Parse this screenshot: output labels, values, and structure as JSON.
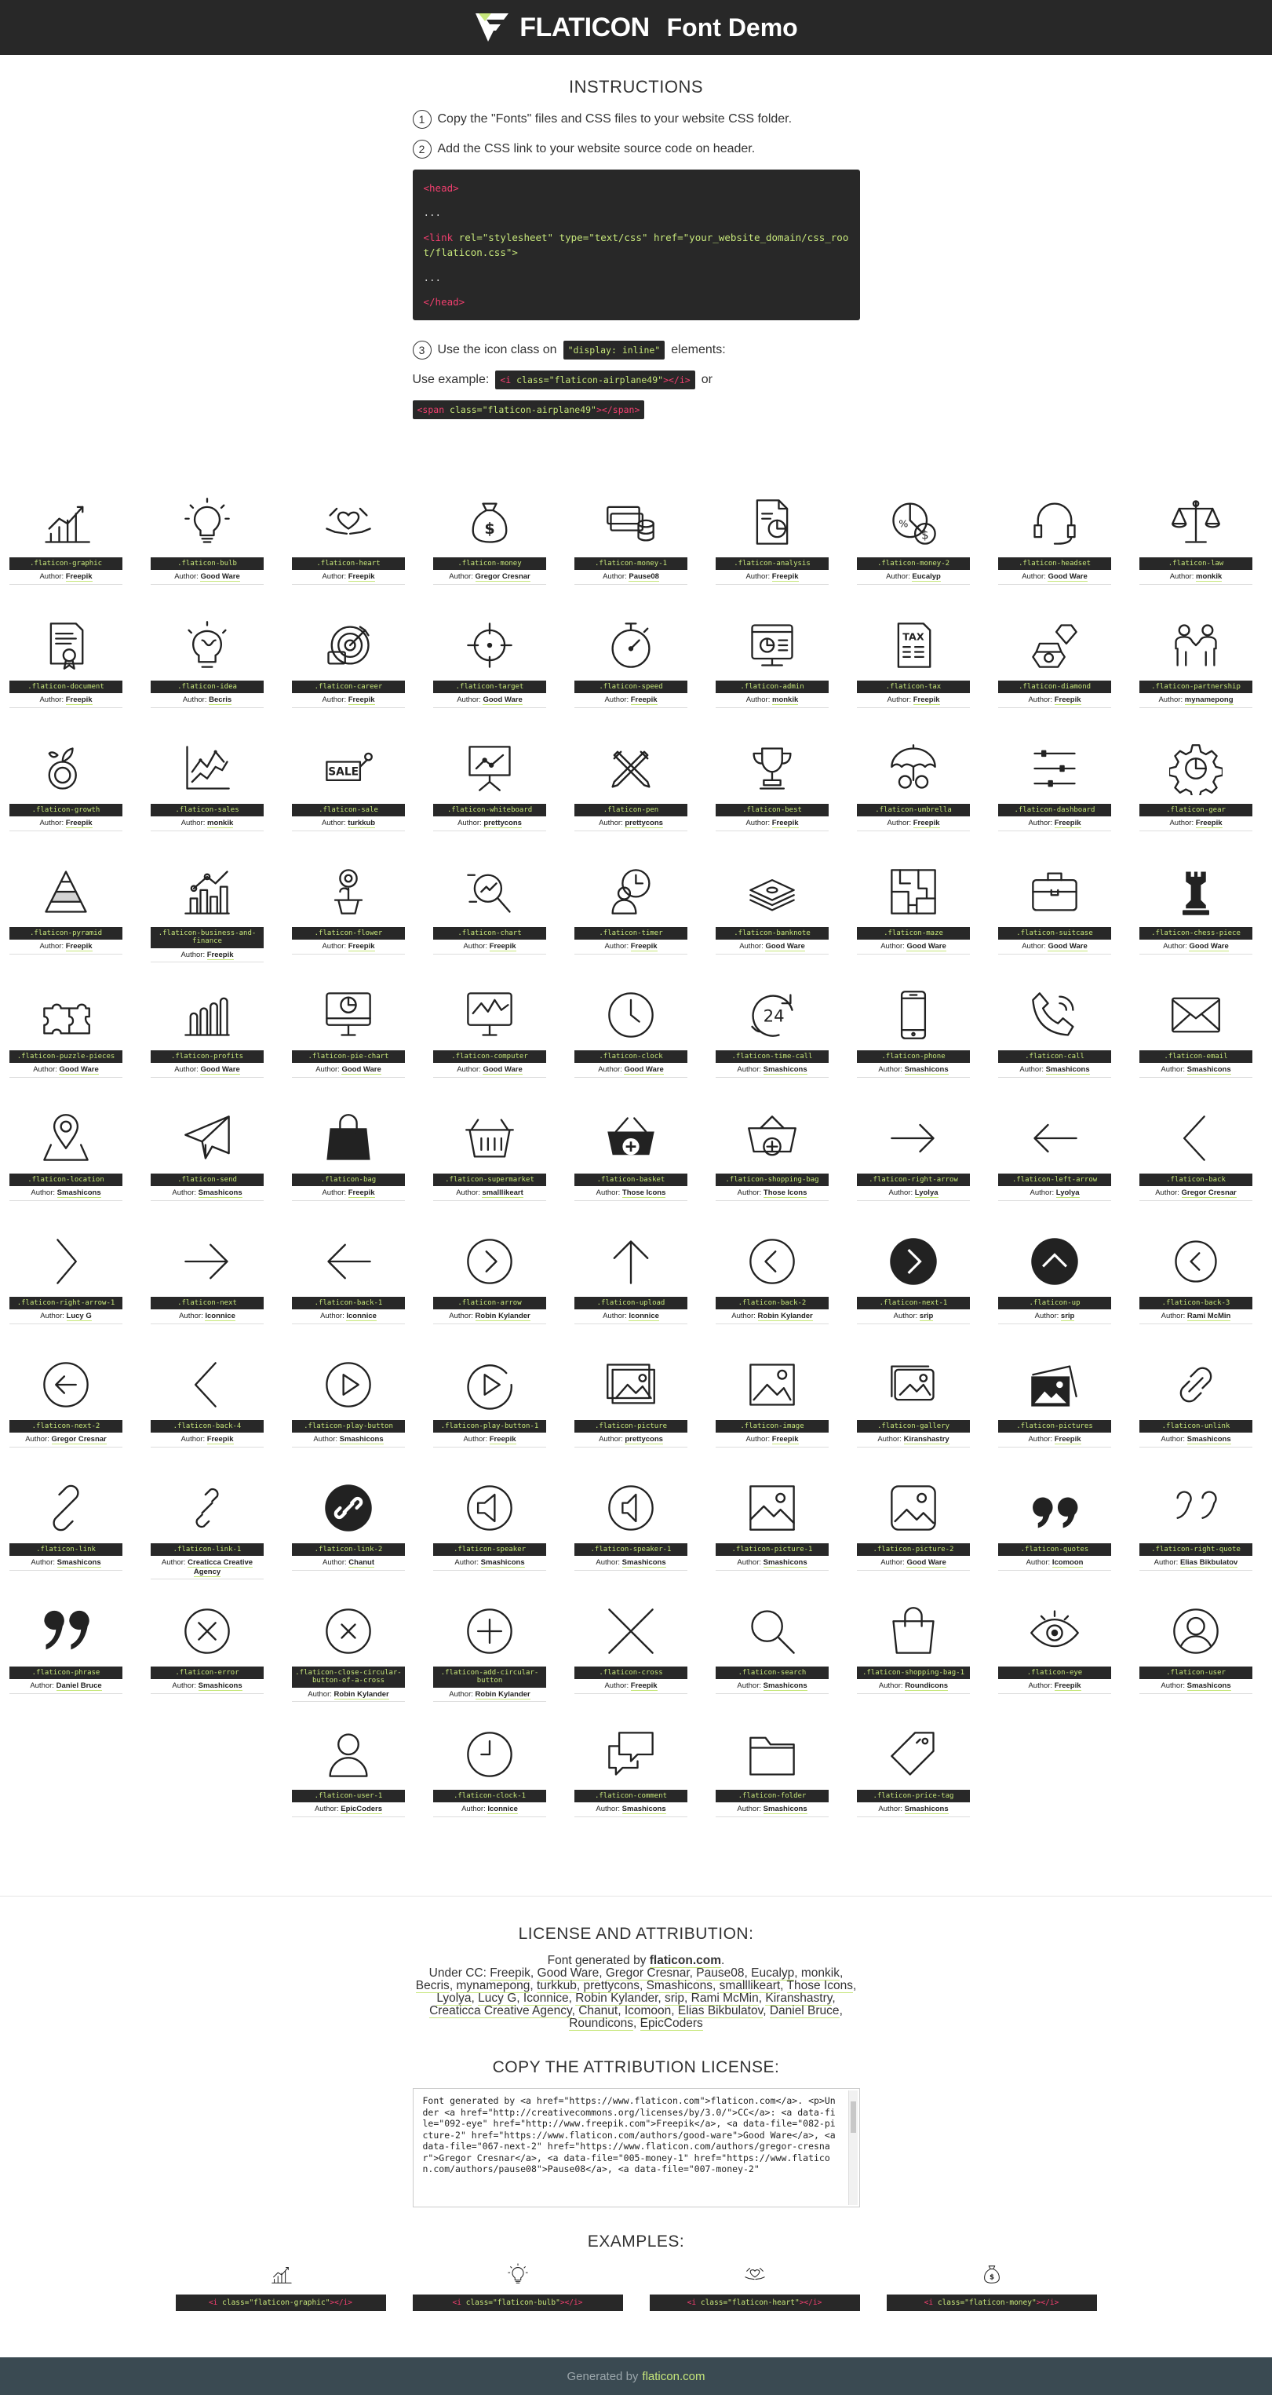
{
  "header": {
    "brand": "FLATICON",
    "subtitle": "Font Demo"
  },
  "instructions": {
    "title": "INSTRUCTIONS",
    "step1": "Copy the \"Fonts\" files and CSS files to your website CSS folder.",
    "step2": "Add the CSS link to your website source code on header.",
    "step3_before": "Use the icon class on",
    "step3_code": "\"display: inline\"",
    "step3_after": "elements:",
    "usage_label": "Use example:",
    "usage_or": "or",
    "code_head_open": "<head>",
    "code_dots": "...",
    "code_link_tag": "<link",
    "code_link_rest": " rel=\"stylesheet\" type=\"text/css\" href=\"your_website_domain/css_root/flaticon.css\">",
    "code_head_close": "</head>",
    "example_i_open": "<i",
    "example_i_attr": " class=\"flaticon-airplane49\"",
    "example_i_close": "></i>",
    "example_span_open": "<span",
    "example_span_attr": " class=\"flaticon-airplane49\"",
    "example_span_close": "></span>"
  },
  "icons": [
    {
      "cls": ".flaticon-graphic",
      "author": "Freepik",
      "icon": "graphic-icon"
    },
    {
      "cls": ".flaticon-bulb",
      "author": "Good Ware",
      "icon": "bulb-icon"
    },
    {
      "cls": ".flaticon-heart",
      "author": "Freepik",
      "icon": "heart-icon"
    },
    {
      "cls": ".flaticon-money",
      "author": "Gregor Cresnar",
      "icon": "money-icon"
    },
    {
      "cls": ".flaticon-money-1",
      "author": "Pause08",
      "icon": "money-1-icon"
    },
    {
      "cls": ".flaticon-analysis",
      "author": "Freepik",
      "icon": "analysis-icon"
    },
    {
      "cls": ".flaticon-money-2",
      "author": "Eucalyp",
      "icon": "money-2-icon"
    },
    {
      "cls": ".flaticon-headset",
      "author": "Good Ware",
      "icon": "headset-icon"
    },
    {
      "cls": ".flaticon-law",
      "author": "monkik",
      "icon": "law-icon"
    },
    {
      "cls": ".flaticon-document",
      "author": "Freepik",
      "icon": "document-icon"
    },
    {
      "cls": ".flaticon-idea",
      "author": "Becris",
      "icon": "idea-icon"
    },
    {
      "cls": ".flaticon-career",
      "author": "Freepik",
      "icon": "career-icon"
    },
    {
      "cls": ".flaticon-target",
      "author": "Good Ware",
      "icon": "target-icon"
    },
    {
      "cls": ".flaticon-speed",
      "author": "Freepik",
      "icon": "speed-icon"
    },
    {
      "cls": ".flaticon-admin",
      "author": "monkik",
      "icon": "admin-icon"
    },
    {
      "cls": ".flaticon-tax",
      "author": "Freepik",
      "icon": "tax-icon"
    },
    {
      "cls": ".flaticon-diamond",
      "author": "Freepik",
      "icon": "diamond-icon"
    },
    {
      "cls": ".flaticon-partnership",
      "author": "mynamepong",
      "icon": "partnership-icon"
    },
    {
      "cls": ".flaticon-growth",
      "author": "Freepik",
      "icon": "growth-icon"
    },
    {
      "cls": ".flaticon-sales",
      "author": "monkik",
      "icon": "sales-icon"
    },
    {
      "cls": ".flaticon-sale",
      "author": "turkkub",
      "icon": "sale-icon"
    },
    {
      "cls": ".flaticon-whiteboard",
      "author": "prettycons",
      "icon": "whiteboard-icon"
    },
    {
      "cls": ".flaticon-pen",
      "author": "prettycons",
      "icon": "pen-icon"
    },
    {
      "cls": ".flaticon-best",
      "author": "Freepik",
      "icon": "best-icon"
    },
    {
      "cls": ".flaticon-umbrella",
      "author": "Freepik",
      "icon": "umbrella-icon"
    },
    {
      "cls": ".flaticon-dashboard",
      "author": "Freepik",
      "icon": "dashboard-icon"
    },
    {
      "cls": ".flaticon-gear",
      "author": "Freepik",
      "icon": "gear-icon"
    },
    {
      "cls": ".flaticon-pyramid",
      "author": "Freepik",
      "icon": "pyramid-icon"
    },
    {
      "cls": ".flaticon-business-and-finance",
      "author": "Freepik",
      "icon": "business-and-finance-icon"
    },
    {
      "cls": ".flaticon-flower",
      "author": "Freepik",
      "icon": "flower-icon"
    },
    {
      "cls": ".flaticon-chart",
      "author": "Freepik",
      "icon": "chart-icon"
    },
    {
      "cls": ".flaticon-timer",
      "author": "Freepik",
      "icon": "timer-icon"
    },
    {
      "cls": ".flaticon-banknote",
      "author": "Good Ware",
      "icon": "banknote-icon"
    },
    {
      "cls": ".flaticon-maze",
      "author": "Good Ware",
      "icon": "maze-icon"
    },
    {
      "cls": ".flaticon-suitcase",
      "author": "Good Ware",
      "icon": "suitcase-icon"
    },
    {
      "cls": ".flaticon-chess-piece",
      "author": "Good Ware",
      "icon": "chess-piece-icon"
    },
    {
      "cls": ".flaticon-puzzle-pieces",
      "author": "Good Ware",
      "icon": "puzzle-pieces-icon"
    },
    {
      "cls": ".flaticon-profits",
      "author": "Good Ware",
      "icon": "profits-icon"
    },
    {
      "cls": ".flaticon-pie-chart",
      "author": "Good Ware",
      "icon": "pie-chart-icon"
    },
    {
      "cls": ".flaticon-computer",
      "author": "Good Ware",
      "icon": "computer-icon"
    },
    {
      "cls": ".flaticon-clock",
      "author": "Good Ware",
      "icon": "clock-icon"
    },
    {
      "cls": ".flaticon-time-call",
      "author": "Smashicons",
      "icon": "time-call-icon"
    },
    {
      "cls": ".flaticon-phone",
      "author": "Smashicons",
      "icon": "phone-icon"
    },
    {
      "cls": ".flaticon-call",
      "author": "Smashicons",
      "icon": "call-icon"
    },
    {
      "cls": ".flaticon-email",
      "author": "Smashicons",
      "icon": "email-icon"
    },
    {
      "cls": ".flaticon-location",
      "author": "Smashicons",
      "icon": "location-icon"
    },
    {
      "cls": ".flaticon-send",
      "author": "Smashicons",
      "icon": "send-icon"
    },
    {
      "cls": ".flaticon-bag",
      "author": "Freepik",
      "icon": "bag-icon"
    },
    {
      "cls": ".flaticon-supermarket",
      "author": "smalllikeart",
      "icon": "supermarket-icon"
    },
    {
      "cls": ".flaticon-basket",
      "author": "Those Icons",
      "icon": "basket-icon"
    },
    {
      "cls": ".flaticon-shopping-bag",
      "author": "Those Icons",
      "icon": "shopping-bag-icon"
    },
    {
      "cls": ".flaticon-right-arrow",
      "author": "Lyolya",
      "icon": "right-arrow-icon"
    },
    {
      "cls": ".flaticon-left-arrow",
      "author": "Lyolya",
      "icon": "left-arrow-icon"
    },
    {
      "cls": ".flaticon-back",
      "author": "Gregor Cresnar",
      "icon": "back-icon"
    },
    {
      "cls": ".flaticon-right-arrow-1",
      "author": "Lucy G",
      "icon": "right-arrow-1-icon"
    },
    {
      "cls": ".flaticon-next",
      "author": "Iconnice",
      "icon": "next-icon"
    },
    {
      "cls": ".flaticon-back-1",
      "author": "Iconnice",
      "icon": "back-1-icon"
    },
    {
      "cls": ".flaticon-arrow",
      "author": "Robin Kylander",
      "icon": "arrow-icon"
    },
    {
      "cls": ".flaticon-upload",
      "author": "Iconnice",
      "icon": "upload-icon"
    },
    {
      "cls": ".flaticon-back-2",
      "author": "Robin Kylander",
      "icon": "back-2-icon"
    },
    {
      "cls": ".flaticon-next-1",
      "author": "srip",
      "icon": "next-1-icon"
    },
    {
      "cls": ".flaticon-up",
      "author": "srip",
      "icon": "up-icon"
    },
    {
      "cls": ".flaticon-back-3",
      "author": "Rami McMin",
      "icon": "back-3-icon"
    },
    {
      "cls": ".flaticon-next-2",
      "author": "Gregor Cresnar",
      "icon": "next-2-icon"
    },
    {
      "cls": ".flaticon-back-4",
      "author": "Freepik",
      "icon": "back-4-icon"
    },
    {
      "cls": ".flaticon-play-button",
      "author": "Smashicons",
      "icon": "play-button-icon"
    },
    {
      "cls": ".flaticon-play-button-1",
      "author": "Freepik",
      "icon": "play-button-1-icon"
    },
    {
      "cls": ".flaticon-picture",
      "author": "prettycons",
      "icon": "picture-icon"
    },
    {
      "cls": ".flaticon-image",
      "author": "Freepik",
      "icon": "image-icon"
    },
    {
      "cls": ".flaticon-gallery",
      "author": "Kiranshastry",
      "icon": "gallery-icon"
    },
    {
      "cls": ".flaticon-pictures",
      "author": "Freepik",
      "icon": "pictures-icon"
    },
    {
      "cls": ".flaticon-unlink",
      "author": "Smashicons",
      "icon": "unlink-icon"
    },
    {
      "cls": ".flaticon-link",
      "author": "Smashicons",
      "icon": "link-icon"
    },
    {
      "cls": ".flaticon-link-1",
      "author": "Creaticca Creative Agency",
      "icon": "link-1-icon"
    },
    {
      "cls": ".flaticon-link-2",
      "author": "Chanut",
      "icon": "link-2-icon"
    },
    {
      "cls": ".flaticon-speaker",
      "author": "Smashicons",
      "icon": "speaker-icon"
    },
    {
      "cls": ".flaticon-speaker-1",
      "author": "Smashicons",
      "icon": "speaker-1-icon"
    },
    {
      "cls": ".flaticon-picture-1",
      "author": "Smashicons",
      "icon": "picture-1-icon"
    },
    {
      "cls": ".flaticon-picture-2",
      "author": "Good Ware",
      "icon": "picture-2-icon"
    },
    {
      "cls": ".flaticon-quotes",
      "author": "Icomoon",
      "icon": "quotes-icon"
    },
    {
      "cls": ".flaticon-right-quote",
      "author": "Elias Bikbulatov",
      "icon": "right-quote-icon"
    },
    {
      "cls": ".flaticon-phrase",
      "author": "Daniel Bruce",
      "icon": "phrase-icon"
    },
    {
      "cls": ".flaticon-error",
      "author": "Smashicons",
      "icon": "error-icon"
    },
    {
      "cls": ".flaticon-close-circular-button-of-a-cross",
      "author": "Robin Kylander",
      "icon": "close-circular-icon"
    },
    {
      "cls": ".flaticon-add-circular-button",
      "author": "Robin Kylander",
      "icon": "add-circular-icon"
    },
    {
      "cls": ".flaticon-cross",
      "author": "Freepik",
      "icon": "cross-icon"
    },
    {
      "cls": ".flaticon-search",
      "author": "Smashicons",
      "icon": "search-icon"
    },
    {
      "cls": ".flaticon-shopping-bag-1",
      "author": "Roundicons",
      "icon": "shopping-bag-1-icon"
    },
    {
      "cls": ".flaticon-eye",
      "author": "Freepik",
      "icon": "eye-icon"
    },
    {
      "cls": ".flaticon-user",
      "author": "Smashicons",
      "icon": "user-icon"
    },
    {
      "cls": ".flaticon-user-1",
      "author": "EpicCoders",
      "icon": "user-1-icon"
    },
    {
      "cls": ".flaticon-clock-1",
      "author": "Iconnice",
      "icon": "clock-1-icon"
    },
    {
      "cls": ".flaticon-comment",
      "author": "Smashicons",
      "icon": "comment-icon"
    },
    {
      "cls": ".flaticon-folder",
      "author": "Smashicons",
      "icon": "folder-icon"
    },
    {
      "cls": ".flaticon-price-tag",
      "author": "Smashicons",
      "icon": "price-tag-icon"
    }
  ],
  "author_label": "Author:",
  "license": {
    "title": "LICENSE AND ATTRIBUTION:",
    "generated_by": "Font generated by",
    "flaticon_link": "flaticon.com",
    "under": "Under CC:",
    "authors": [
      "Freepik",
      "Good Ware",
      "Gregor Cresnar",
      "Pause08",
      "Eucalyp",
      "monkik",
      "Becris",
      "mynamepong",
      "turkkub",
      "prettycons",
      "Smashicons",
      "smalllikeart",
      "Those Icons",
      "Lyolya",
      "Lucy G",
      "Iconnice",
      "Robin Kylander",
      "srip",
      "Rami McMin",
      "Kiranshastry",
      "Creaticca Creative Agency",
      "Chanut",
      "Icomoon",
      "Elias Bikbulatov",
      "Daniel Bruce",
      "Roundicons",
      "EpicCoders"
    ],
    "copy_title": "COPY THE ATTRIBUTION LICENSE:",
    "attribution_text": "Font generated by <a href=\"https://www.flaticon.com\">flaticon.com</a>. <p>Under <a href=\"http://creativecommons.org/licenses/by/3.0/\">CC</a>: <a data-file=\"092-eye\" href=\"http://www.freepik.com\">Freepik</a>, <a data-file=\"082-picture-2\" href=\"https://www.flaticon.com/authors/good-ware\">Good Ware</a>, <a data-file=\"067-next-2\" href=\"https://www.flaticon.com/authors/gregor-cresnar\">Gregor Cresnar</a>, <a data-file=\"005-money-1\" href=\"https://www.flaticon.com/authors/pause08\">Pause08</a>, <a data-file=\"007-money-2\"",
    "examples_title": "EXAMPLES:",
    "examples": [
      {
        "cls": "flaticon-graphic",
        "icon": "graphic-icon"
      },
      {
        "cls": "flaticon-bulb",
        "icon": "bulb-icon"
      },
      {
        "cls": "flaticon-heart",
        "icon": "heart-icon"
      },
      {
        "cls": "flaticon-money",
        "icon": "money-icon"
      }
    ],
    "example_open": "<i",
    "example_attr_prefix": " class=\"",
    "example_attr_suffix": "\"",
    "example_close": "></i>"
  },
  "footer": {
    "text": "Generated by",
    "link": "flaticon.com"
  },
  "colors": {
    "accent": "#c6e67a",
    "dark": "#282828",
    "tag": "#f33f6f",
    "footer": "#3a4a52"
  }
}
